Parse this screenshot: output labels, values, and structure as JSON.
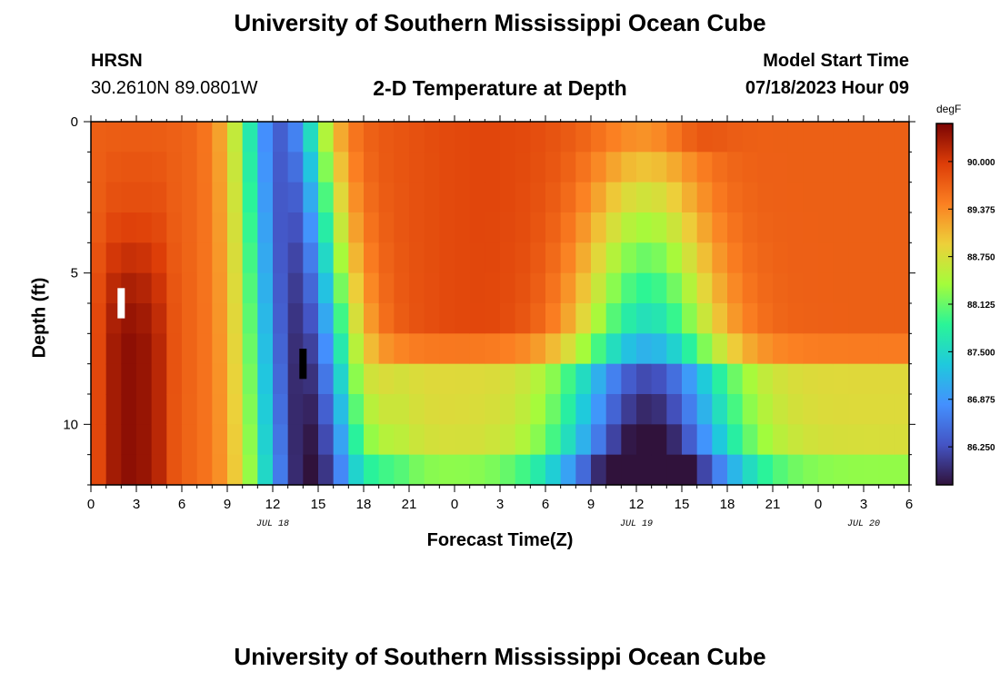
{
  "header": {
    "title": "University of Southern Mississippi Ocean Cube",
    "station": "HRSN",
    "coords": "30.2610N  89.0801W",
    "subtitle": "2-D Temperature at Depth",
    "model_start_label": "Model Start Time",
    "model_start_value": "07/18/2023 Hour 09"
  },
  "footer": {
    "title": "University of Southern Mississippi Ocean Cube"
  },
  "colors": {
    "scale": [
      "#30123b",
      "#4454c4",
      "#4490fe",
      "#1fc9dd",
      "#2af597",
      "#a4fc3b",
      "#edd03a",
      "#fb8022",
      "#dd3d08",
      "#7a0403"
    ],
    "marker_white": "#ffffff",
    "marker_black": "#000000"
  },
  "chart_data": {
    "type": "heatmap",
    "title": "2-D Temperature at Depth",
    "xlabel": "Forecast Time(Z)",
    "ylabel": "Depth (ft)",
    "x_range_hours": [
      0,
      54
    ],
    "y_range_ft": [
      0,
      12
    ],
    "y_inverted": true,
    "x_major_step_hours": 3,
    "x_tick_labels": [
      "0",
      "3",
      "6",
      "9",
      "12",
      "15",
      "18",
      "21",
      "0",
      "3",
      "6",
      "9",
      "12",
      "15",
      "18",
      "21",
      "0",
      "3",
      "6"
    ],
    "y_ticks": [
      0,
      5,
      10
    ],
    "y_tick_labels": [
      "0",
      "5",
      "10"
    ],
    "date_labels": [
      {
        "label": "JUL 18",
        "hour": 12
      },
      {
        "label": "JUL 19",
        "hour": 36
      },
      {
        "label": "JUL 20",
        "hour": 51
      }
    ],
    "depth_levels_ft": [
      0.5,
      1.5,
      2.5,
      3.5,
      4.5,
      5.5,
      6.5,
      7.5,
      8.5,
      9.5,
      10.5,
      11.5
    ],
    "colorbar": {
      "unit": "degF",
      "min": 85.75,
      "max": 90.5,
      "tick_values": [
        86.25,
        86.875,
        87.5,
        88.125,
        88.75,
        89.375,
        90.0
      ],
      "tick_labels": [
        "86.250",
        "86.875",
        "87.500",
        "88.125",
        "88.750",
        "89.375",
        "90.000"
      ]
    },
    "markers": [
      {
        "name": "current-time-marker-white",
        "hour": 2,
        "depth_from": 5.5,
        "depth_to": 6.5,
        "color": "#ffffff"
      },
      {
        "name": "current-time-marker-black",
        "hour": 14,
        "depth_from": 7.5,
        "depth_to": 8.5,
        "color": "#000000"
      }
    ]
  }
}
